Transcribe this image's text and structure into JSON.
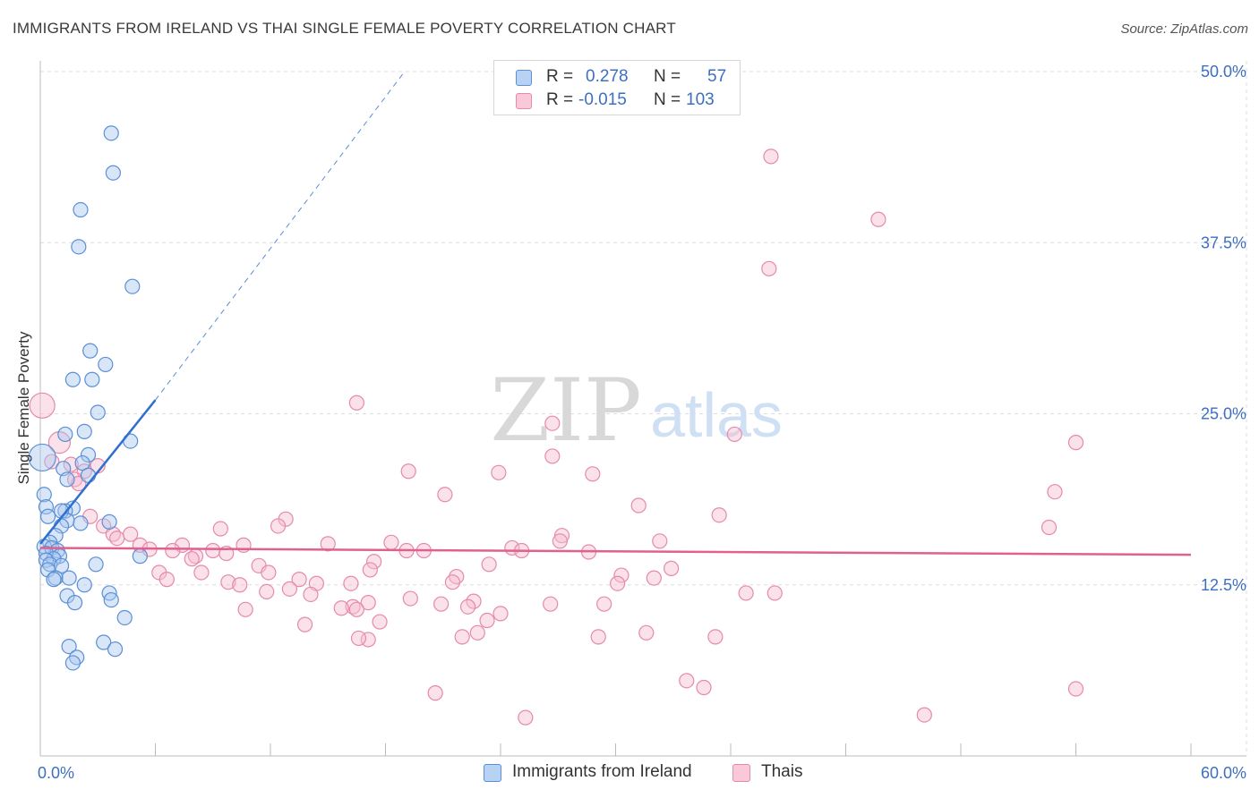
{
  "title": "IMMIGRANTS FROM IRELAND VS THAI SINGLE FEMALE POVERTY CORRELATION CHART",
  "source": "Source: ZipAtlas.com",
  "watermark": {
    "part1": "ZIP",
    "part2": "atlas"
  },
  "legend_top": {
    "rows": [
      {
        "r_label": "R =",
        "r_value": "0.278",
        "n_label": "N =",
        "n_value": "57"
      },
      {
        "r_label": "R =",
        "r_value": "-0.015",
        "n_label": "N =",
        "n_value": "103"
      }
    ]
  },
  "legend_bottom": [
    {
      "label": "Immigrants from Ireland"
    },
    {
      "label": "Thais"
    }
  ],
  "colors": {
    "blue_fill": "#a9c8f0",
    "blue_stroke": "#5b8fd6",
    "blue_line": "#2e6fcf",
    "pink_fill": "#f6bdd0",
    "pink_stroke": "#e58aaa",
    "pink_line": "#e06090",
    "axis_text": "#3d6fc1",
    "grid": "#dcdcdc"
  },
  "chart_data": {
    "type": "scatter",
    "title": "IMMIGRANTS FROM IRELAND VS THAI SINGLE FEMALE POVERTY CORRELATION CHART",
    "xlabel": "",
    "ylabel": "Single Female Poverty",
    "xlim": [
      0,
      60
    ],
    "ylim": [
      0,
      50
    ],
    "x_tick_labels": {
      "min": "0.0%",
      "max": "60.0%"
    },
    "y_ticks": [
      {
        "value": 12.5,
        "label": "12.5%"
      },
      {
        "value": 25.0,
        "label": "25.0%"
      },
      {
        "value": 37.5,
        "label": "37.5%"
      },
      {
        "value": 50.0,
        "label": "50.0%"
      }
    ],
    "series": [
      {
        "name": "Immigrants from Ireland",
        "R": 0.278,
        "N": 57,
        "trend": {
          "x0": 0,
          "y0": 15.5,
          "x1": 6.0,
          "y1": 26.0,
          "dashed_to_x": 19.0,
          "dashed_to_y": 50.0
        },
        "points": [
          [
            3.7,
            45.5
          ],
          [
            3.8,
            42.6
          ],
          [
            2.1,
            39.9
          ],
          [
            2.0,
            37.2
          ],
          [
            4.8,
            34.3
          ],
          [
            2.6,
            29.6
          ],
          [
            3.4,
            28.6
          ],
          [
            1.7,
            27.5
          ],
          [
            2.7,
            27.5
          ],
          [
            3.0,
            25.1
          ],
          [
            2.3,
            23.7
          ],
          [
            1.3,
            23.5
          ],
          [
            4.7,
            23.0
          ],
          [
            2.5,
            22.0
          ],
          [
            0.1,
            21.8
          ],
          [
            2.2,
            21.4
          ],
          [
            1.2,
            21.0
          ],
          [
            2.5,
            20.5
          ],
          [
            1.4,
            20.2
          ],
          [
            0.2,
            19.1
          ],
          [
            0.3,
            18.2
          ],
          [
            1.7,
            18.1
          ],
          [
            1.3,
            17.9
          ],
          [
            1.1,
            17.9
          ],
          [
            0.4,
            17.5
          ],
          [
            1.4,
            17.2
          ],
          [
            2.1,
            17.0
          ],
          [
            3.6,
            17.1
          ],
          [
            1.1,
            16.8
          ],
          [
            0.8,
            16.1
          ],
          [
            0.5,
            15.6
          ],
          [
            0.2,
            15.3
          ],
          [
            0.6,
            15.2
          ],
          [
            0.9,
            15.0
          ],
          [
            0.3,
            14.8
          ],
          [
            1.0,
            14.6
          ],
          [
            5.2,
            14.6
          ],
          [
            0.7,
            14.4
          ],
          [
            0.3,
            14.3
          ],
          [
            0.5,
            14.0
          ],
          [
            1.1,
            13.9
          ],
          [
            2.9,
            14.0
          ],
          [
            0.4,
            13.6
          ],
          [
            0.8,
            13.0
          ],
          [
            1.5,
            13.0
          ],
          [
            0.7,
            12.9
          ],
          [
            2.3,
            12.5
          ],
          [
            3.6,
            11.9
          ],
          [
            1.4,
            11.7
          ],
          [
            3.7,
            11.4
          ],
          [
            1.8,
            11.2
          ],
          [
            4.4,
            10.1
          ],
          [
            3.3,
            8.3
          ],
          [
            1.5,
            8.0
          ],
          [
            3.9,
            7.8
          ],
          [
            1.9,
            7.2
          ],
          [
            1.7,
            6.8
          ]
        ]
      },
      {
        "name": "Thais",
        "R": -0.015,
        "N": 103,
        "trend": {
          "x0": 0,
          "y0": 15.2,
          "x1": 60,
          "y1": 14.7
        },
        "points": [
          [
            38.1,
            43.8
          ],
          [
            43.7,
            39.2
          ],
          [
            38.0,
            35.6
          ],
          [
            0.1,
            25.6
          ],
          [
            16.5,
            25.8
          ],
          [
            26.7,
            24.3
          ],
          [
            36.2,
            23.5
          ],
          [
            1.0,
            22.9
          ],
          [
            54.0,
            22.9
          ],
          [
            26.7,
            21.9
          ],
          [
            0.6,
            21.5
          ],
          [
            1.6,
            21.3
          ],
          [
            3.0,
            21.2
          ],
          [
            2.3,
            20.8
          ],
          [
            19.2,
            20.8
          ],
          [
            23.9,
            20.7
          ],
          [
            28.8,
            20.6
          ],
          [
            1.8,
            20.2
          ],
          [
            2.0,
            19.9
          ],
          [
            52.9,
            19.3
          ],
          [
            21.1,
            19.1
          ],
          [
            31.2,
            18.3
          ],
          [
            35.4,
            17.6
          ],
          [
            2.6,
            17.5
          ],
          [
            12.8,
            17.3
          ],
          [
            12.4,
            16.8
          ],
          [
            3.3,
            16.8
          ],
          [
            52.6,
            16.7
          ],
          [
            9.4,
            16.6
          ],
          [
            4.7,
            16.2
          ],
          [
            3.8,
            16.2
          ],
          [
            27.2,
            16.1
          ],
          [
            4.0,
            15.9
          ],
          [
            32.3,
            15.7
          ],
          [
            18.3,
            15.6
          ],
          [
            15.0,
            15.5
          ],
          [
            27.1,
            15.7
          ],
          [
            10.6,
            15.4
          ],
          [
            5.2,
            15.4
          ],
          [
            7.4,
            15.4
          ],
          [
            5.7,
            15.1
          ],
          [
            24.6,
            15.2
          ],
          [
            20.0,
            15.0
          ],
          [
            6.9,
            15.0
          ],
          [
            9.0,
            15.0
          ],
          [
            19.1,
            15.0
          ],
          [
            28.6,
            14.9
          ],
          [
            25.1,
            15.0
          ],
          [
            8.1,
            14.6
          ],
          [
            9.7,
            14.8
          ],
          [
            7.9,
            14.4
          ],
          [
            17.4,
            14.2
          ],
          [
            23.4,
            14.0
          ],
          [
            11.4,
            13.9
          ],
          [
            32.9,
            13.7
          ],
          [
            6.2,
            13.4
          ],
          [
            8.4,
            13.4
          ],
          [
            17.2,
            13.6
          ],
          [
            11.9,
            13.4
          ],
          [
            21.7,
            13.1
          ],
          [
            6.6,
            12.9
          ],
          [
            9.8,
            12.7
          ],
          [
            16.2,
            12.6
          ],
          [
            13.5,
            12.9
          ],
          [
            30.3,
            13.2
          ],
          [
            21.5,
            12.7
          ],
          [
            30.1,
            12.6
          ],
          [
            10.4,
            12.5
          ],
          [
            14.4,
            12.6
          ],
          [
            13.0,
            12.2
          ],
          [
            11.8,
            12.0
          ],
          [
            14.1,
            11.8
          ],
          [
            36.8,
            11.9
          ],
          [
            38.3,
            11.9
          ],
          [
            19.3,
            11.5
          ],
          [
            22.6,
            11.3
          ],
          [
            20.9,
            11.1
          ],
          [
            17.1,
            11.2
          ],
          [
            29.4,
            11.1
          ],
          [
            26.6,
            11.1
          ],
          [
            22.3,
            10.9
          ],
          [
            16.3,
            10.9
          ],
          [
            16.5,
            10.7
          ],
          [
            10.7,
            10.7
          ],
          [
            15.7,
            10.8
          ],
          [
            24.0,
            10.4
          ],
          [
            23.3,
            9.9
          ],
          [
            17.7,
            9.8
          ],
          [
            13.8,
            9.6
          ],
          [
            22.8,
            9.0
          ],
          [
            31.6,
            9.0
          ],
          [
            22.0,
            8.7
          ],
          [
            35.2,
            8.7
          ],
          [
            29.1,
            8.7
          ],
          [
            17.1,
            8.5
          ],
          [
            33.7,
            5.5
          ],
          [
            34.6,
            5.0
          ],
          [
            54.0,
            4.9
          ],
          [
            20.6,
            4.6
          ],
          [
            46.1,
            3.0
          ],
          [
            25.3,
            2.8
          ],
          [
            16.6,
            8.6
          ],
          [
            32.0,
            13.0
          ]
        ]
      }
    ]
  }
}
